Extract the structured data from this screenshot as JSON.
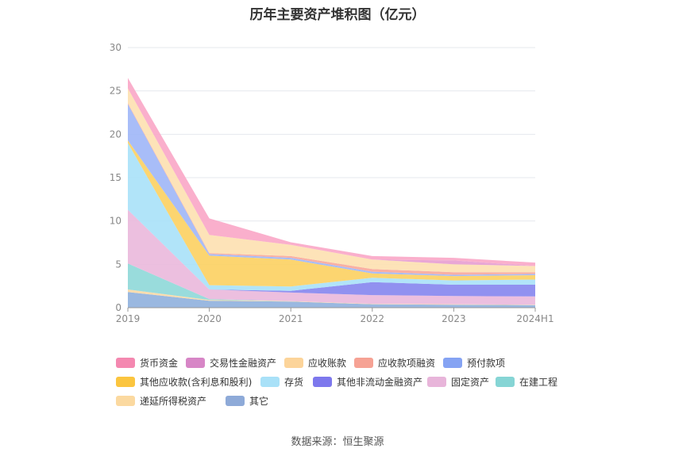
{
  "title": "历年主要资产堆积图（亿元）",
  "source": "数据来源：恒生聚源",
  "chart_data": {
    "type": "area",
    "stacked": true,
    "title": "历年主要资产堆积图（亿元）",
    "x": [
      "2019",
      "2020",
      "2021",
      "2022",
      "2023",
      "2024H1"
    ],
    "ylim": [
      0,
      30
    ],
    "yticks": [
      0,
      5,
      10,
      15,
      20,
      25,
      30
    ],
    "grid": true,
    "legend_position": "bottom",
    "series": [
      {
        "name": "其它",
        "color": "#8fb0dd",
        "values": [
          1.8,
          0.8,
          0.7,
          0.4,
          0.35,
          0.3
        ]
      },
      {
        "name": "递延所得税资产",
        "color": "#fbd9a5",
        "values": [
          0.3,
          0.1,
          0.05,
          0.05,
          0.05,
          0.05
        ]
      },
      {
        "name": "在建工程",
        "color": "#8ed8d8",
        "values": [
          3.0,
          0.1,
          0.0,
          0.0,
          0.0,
          0.0
        ]
      },
      {
        "name": "固定资产",
        "color": "#eab8db",
        "values": [
          6.2,
          1.1,
          1.0,
          1.0,
          0.95,
          0.95
        ]
      },
      {
        "name": "其他非流动金融资产",
        "color": "#8585ee",
        "values": [
          0.0,
          0.0,
          0.2,
          1.5,
          1.3,
          1.35
        ]
      },
      {
        "name": "存货",
        "color": "#a9e1f8",
        "values": [
          7.7,
          0.5,
          0.5,
          0.5,
          0.5,
          0.6
        ]
      },
      {
        "name": "其他应收款(含利息和股利)",
        "color": "#fcd061",
        "values": [
          0.3,
          3.4,
          3.1,
          0.5,
          0.5,
          0.5
        ]
      },
      {
        "name": "预付款项",
        "color": "#9fb6f7",
        "values": [
          4.2,
          0.2,
          0.2,
          0.2,
          0.15,
          0.15
        ]
      },
      {
        "name": "应收款项融资",
        "color": "#f8a79a",
        "values": [
          0.1,
          0.1,
          0.2,
          0.3,
          0.3,
          0.2
        ]
      },
      {
        "name": "应收账款",
        "color": "#fde0b0",
        "values": [
          1.7,
          2.1,
          1.3,
          1.1,
          0.9,
          0.7
        ]
      },
      {
        "name": "交易性金融资产",
        "color": "#e79dd0",
        "values": [
          0.0,
          0.0,
          0.0,
          0.0,
          0.45,
          0.0
        ]
      },
      {
        "name": "货币资金",
        "color": "#f9a6c7",
        "values": [
          1.2,
          1.9,
          0.3,
          0.4,
          0.3,
          0.4
        ]
      }
    ]
  },
  "legend": [
    {
      "label": "货币资金",
      "color": "#f488b0"
    },
    {
      "label": "交易性金融资产",
      "color": "#d786c6"
    },
    {
      "label": "应收账款",
      "color": "#fcd49a"
    },
    {
      "label": "应收款项融资",
      "color": "#f6a294"
    },
    {
      "label": "预付款项",
      "color": "#85a3f3"
    },
    {
      "label": "其他应收款(含利息和股利)",
      "color": "#fbc53f"
    },
    {
      "label": "存货",
      "color": "#a9e1f8"
    },
    {
      "label": "其他非流动金融资产",
      "color": "#7d78ed"
    },
    {
      "label": "固定资产",
      "color": "#e8b5da"
    },
    {
      "label": "在建工程",
      "color": "#86d5d5"
    },
    {
      "label": "递延所得税资产",
      "color": "#fbd9a0"
    },
    {
      "label": "其它",
      "color": "#8eaad8"
    }
  ]
}
